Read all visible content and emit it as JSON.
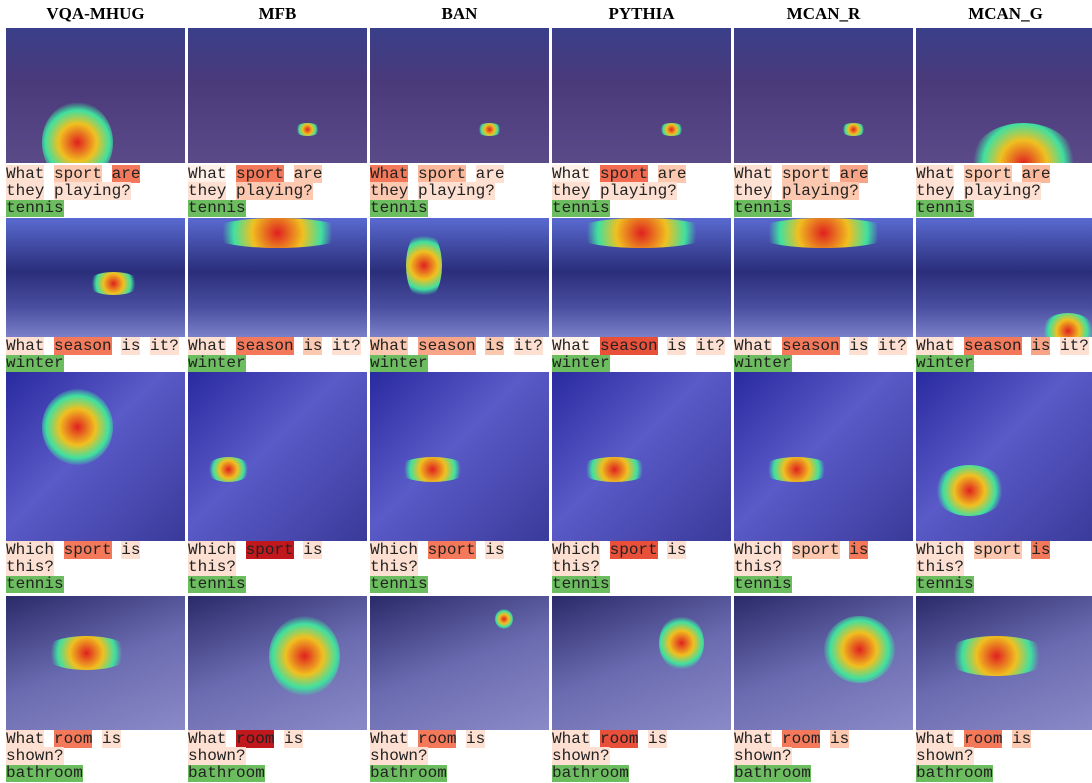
{
  "columns": [
    "VQA-MHUG",
    "MFB",
    "BAN",
    "PYTHIA",
    "MCAN_R",
    "MCAN_G"
  ],
  "answer_color": "#6cbd5f",
  "rows": [
    {
      "question": [
        "What",
        "sport",
        "are",
        "they",
        "playing?"
      ],
      "answer": "tennis",
      "highlights": [
        [
          "#fde0d2",
          "#fcc9b0",
          "#f4795a",
          "#fde0d2",
          "#fde0d2"
        ],
        [
          "#fff0e8",
          "#f4795a",
          "#fcc9b0",
          "#fde0d2",
          "#fcc9b0"
        ],
        [
          "#f4795a",
          "#fcb89a",
          "#fde0d2",
          "#fcc9b0",
          "#fde0d2"
        ],
        [
          "#fff0e8",
          "#f26a4f",
          "#fcc9b0",
          "#fde0d2",
          "#fde0d2"
        ],
        [
          "#fde0d2",
          "#fcc9b0",
          "#f8a486",
          "#fde0d2",
          "#fcc9b0"
        ],
        [
          "#fde0d2",
          "#fcc9b0",
          "#fcb89a",
          "#fde0d2",
          "#fde0d2"
        ]
      ]
    },
    {
      "question": [
        "What",
        "season",
        "is",
        "it?"
      ],
      "answer": "winter",
      "highlights": [
        [
          "#fde0d2",
          "#f4795a",
          "#fde0d2",
          "#fde0d2"
        ],
        [
          "#fde0d2",
          "#f4795a",
          "#fcc9b0",
          "#fde0d2"
        ],
        [
          "#fcc9b0",
          "#f8a486",
          "#fcc9b0",
          "#fde0d2"
        ],
        [
          "#fff0e8",
          "#e8503a",
          "#fde0d2",
          "#fde0d2"
        ],
        [
          "#fde0d2",
          "#f4795a",
          "#fde0d2",
          "#fde0d2"
        ],
        [
          "#fde0d2",
          "#f4795a",
          "#f8a486",
          "#fde0d2"
        ]
      ]
    },
    {
      "question": [
        "Which",
        "sport",
        "is",
        "this?"
      ],
      "answer": "tennis",
      "highlights": [
        [
          "#fde0d2",
          "#f4795a",
          "#fde0d2",
          "#fde0d2"
        ],
        [
          "#fde0d2",
          "#c0181c",
          "#fde0d2",
          "#fde0d2"
        ],
        [
          "#fde0d2",
          "#f4795a",
          "#fde0d2",
          "#fde0d2"
        ],
        [
          "#fde0d2",
          "#e8503a",
          "#fde0d2",
          "#fde0d2"
        ],
        [
          "#fde0d2",
          "#fcc9b0",
          "#f4795a",
          "#fde0d2"
        ],
        [
          "#fde0d2",
          "#fcc9b0",
          "#f4795a",
          "#fde0d2"
        ]
      ]
    },
    {
      "question": [
        "What",
        "room",
        "is",
        "shown?"
      ],
      "answer": "bathroom",
      "highlights": [
        [
          "#fde0d2",
          "#f4795a",
          "#fde0d2",
          "#fde0d2"
        ],
        [
          "#fde0d2",
          "#c0181c",
          "#fde0d2",
          "#fde0d2"
        ],
        [
          "#fde0d2",
          "#f4795a",
          "#fde0d2",
          "#fde0d2"
        ],
        [
          "#fde0d2",
          "#e8503a",
          "#fde0d2",
          "#fde0d2"
        ],
        [
          "#fde0d2",
          "#f4795a",
          "#fcc9b0",
          "#fde0d2"
        ],
        [
          "#fde0d2",
          "#f4795a",
          "#fcc9b0",
          "#fde0d2"
        ]
      ]
    }
  ]
}
